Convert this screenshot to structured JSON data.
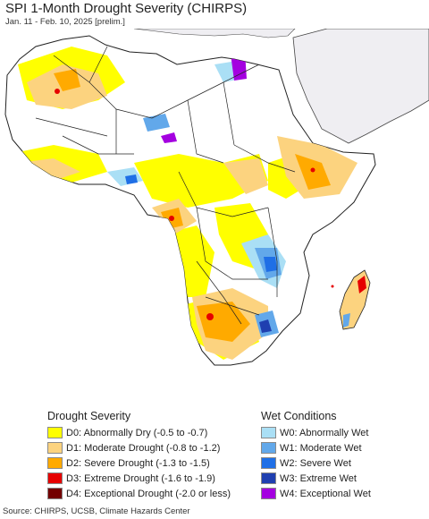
{
  "header": {
    "title": "SPI 1-Month Drought Severity (CHIRPS)",
    "subtitle": "Jan. 11 - Feb. 10, 2025 [prelim.]"
  },
  "legend": {
    "drought_title": "Drought Severity",
    "drought_items": [
      {
        "label": "D0: Abnormally Dry (-0.5 to -0.7)",
        "color": "#ffff00"
      },
      {
        "label": "D1: Moderate Drought (-0.8 to -1.2)",
        "color": "#fcd37f"
      },
      {
        "label": "D2: Severe Drought (-1.3 to -1.5)",
        "color": "#ffaa00"
      },
      {
        "label": "D3: Extreme Drought (-1.6 to -1.9)",
        "color": "#e60000"
      },
      {
        "label": "D4: Exceptional Drought (-2.0 or less)",
        "color": "#730000"
      }
    ],
    "wet_title": "Wet Conditions",
    "wet_items": [
      {
        "label": "W0: Abnormally Wet",
        "color": "#aadff5"
      },
      {
        "label": "W1: Moderate Wet",
        "color": "#62a8ea"
      },
      {
        "label": "W2: Severe Wet",
        "color": "#1f6fe6"
      },
      {
        "label": "W3: Extreme Wet",
        "color": "#1f3fb0"
      },
      {
        "label": "W4: Exceptional Wet",
        "color": "#a400e0"
      }
    ]
  },
  "footer": {
    "source": "Source: CHIRPS, UCSB, Climate Hazards Center"
  },
  "colors": {
    "ocean": "#ffffff",
    "land_no_data": "#efeef2",
    "normal": "#ffffff",
    "border": "#222222"
  }
}
